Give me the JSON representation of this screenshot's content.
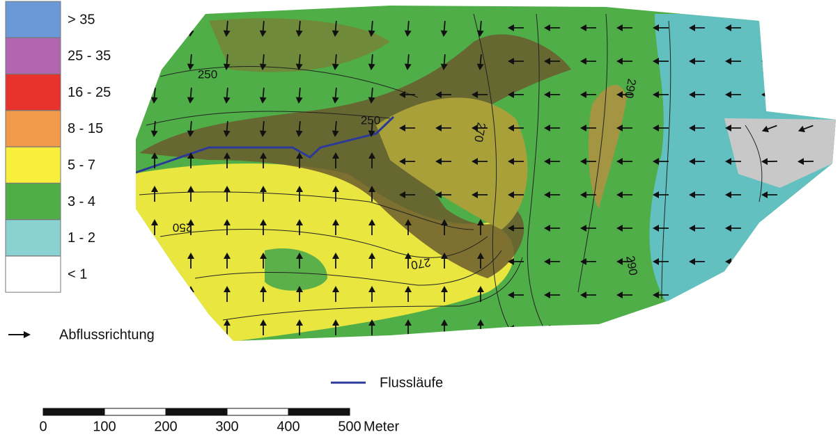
{
  "legend": {
    "classes": [
      {
        "label": "> 35",
        "color": "#6b98d6"
      },
      {
        "label": "25 - 35",
        "color": "#b266b0"
      },
      {
        "label": "16 - 25",
        "color": "#e8322c"
      },
      {
        "label": "8 - 15",
        "color": "#f09a4a"
      },
      {
        "label": "5 - 7",
        "color": "#f7ef3c"
      },
      {
        "label": "3 - 4",
        "color": "#4fae48"
      },
      {
        "label": "1 - 2",
        "color": "#8ad1d2"
      },
      {
        "label": "< 1",
        "color": "#ffffff"
      }
    ],
    "arrow_label": "Abflussrichtung",
    "river_label": "Flussläufe",
    "river_color": "#2b3a99"
  },
  "map": {
    "contour_labels": [
      250,
      250,
      250,
      270,
      270,
      290,
      290
    ]
  },
  "scale_bar": {
    "ticks": [
      0,
      100,
      200,
      300,
      400,
      500
    ],
    "unit": "Meter"
  }
}
